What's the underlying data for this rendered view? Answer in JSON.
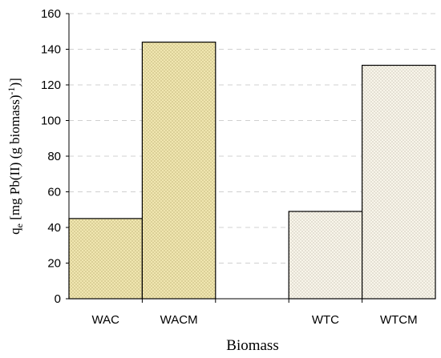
{
  "chart_data": {
    "type": "bar",
    "categories": [
      "WAC",
      "WACM",
      "",
      "WTC",
      "WTCM"
    ],
    "values": [
      45,
      144,
      null,
      49,
      131
    ],
    "bar_colors": [
      "#f0e6b0",
      "#f0e6b0",
      null,
      "#f8f5ea",
      "#f8f5ea"
    ],
    "pattern_dot_colors": [
      "#8a7a3a",
      "#8a7a3a",
      null,
      "#9a9080",
      "#9a9080"
    ],
    "xlabel": "Biomass",
    "ylabel_main": "q",
    "ylabel_sub": "e",
    "ylabel_rest_1": " [mg Pb(II) (g biomass)",
    "ylabel_sup": "-1",
    "ylabel_rest_2": ")]",
    "ylim": [
      0,
      160
    ],
    "yticks": [
      0,
      20,
      40,
      60,
      80,
      100,
      120,
      140,
      160
    ],
    "grid": true
  }
}
